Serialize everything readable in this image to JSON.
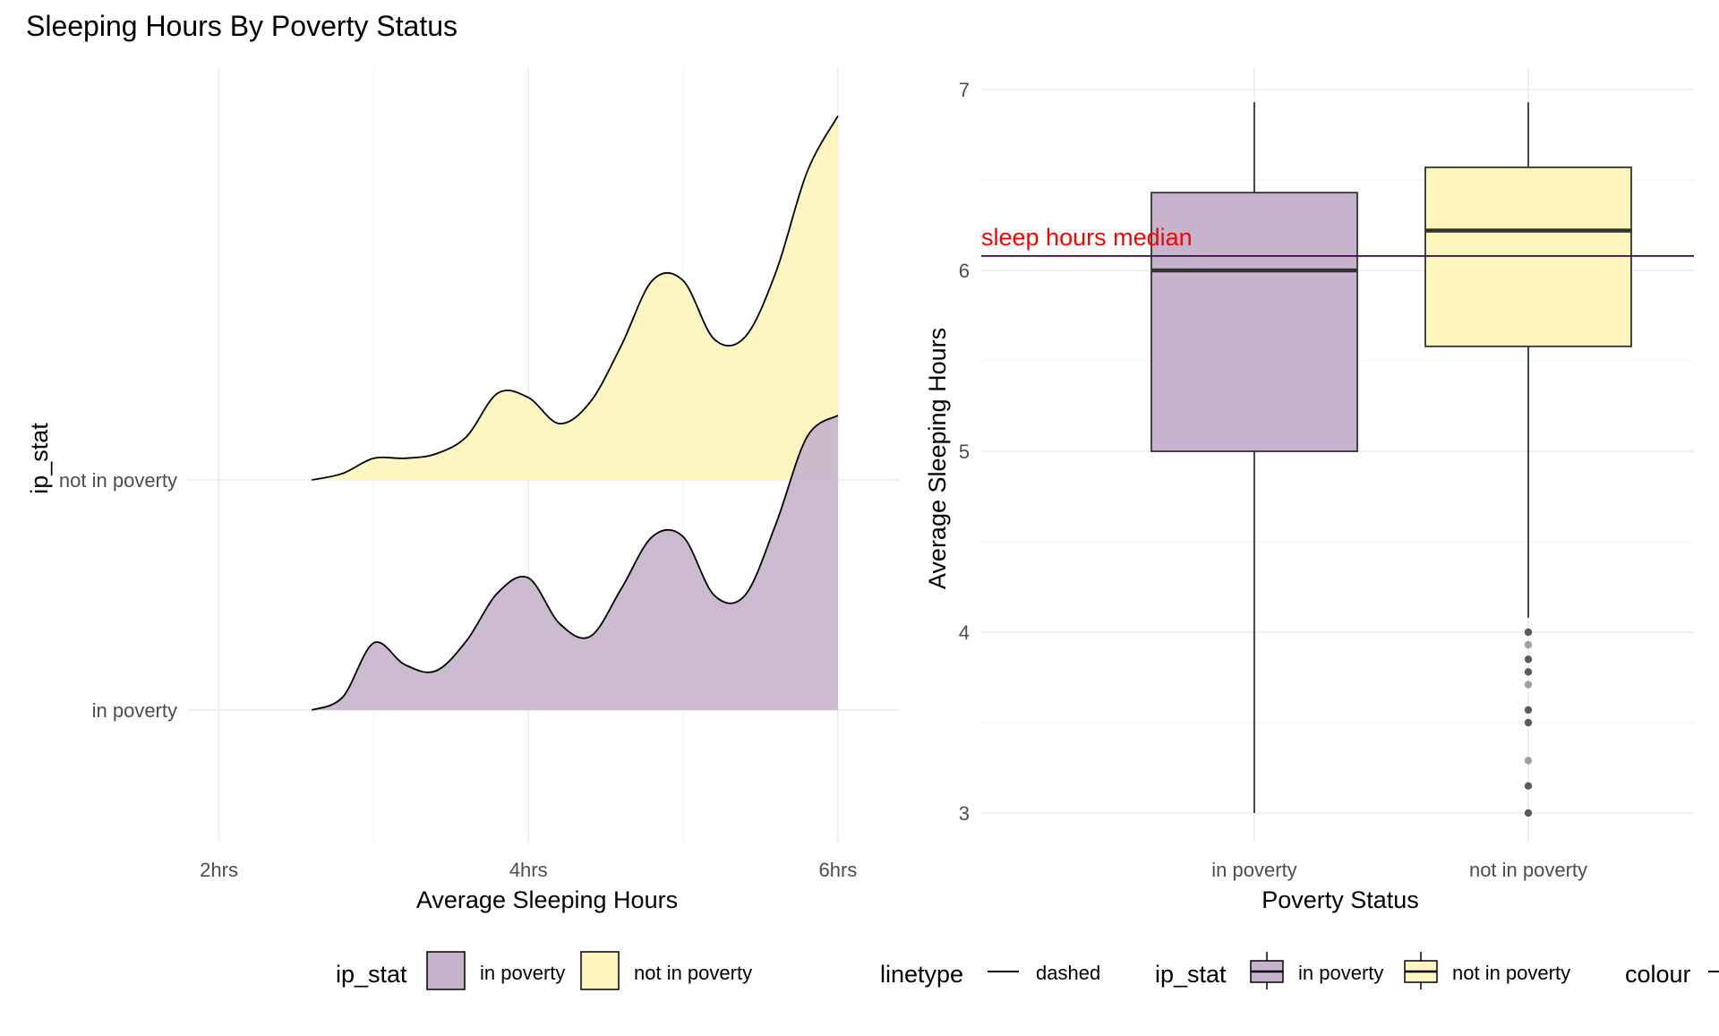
{
  "title": "Sleeping Hours By Poverty Status",
  "colors": {
    "in_poverty": "#c7b4cc",
    "not_in_poverty": "#fdf5bd",
    "median_line": "#440154",
    "annotation": "#ff0000",
    "outline": "#000000",
    "grid": "#ebebeb"
  },
  "chart_data": [
    {
      "type": "ridgeline",
      "xlabel": "Average Sleeping Hours",
      "ylabel": "ip_stat",
      "xlim": [
        1.8,
        6.4
      ],
      "x_ticks": [
        {
          "value": 2,
          "label": "2hrs"
        },
        {
          "value": 4,
          "label": "4hrs"
        },
        {
          "value": 6,
          "label": "6hrs"
        }
      ],
      "categories": [
        "in poverty",
        "not in poverty"
      ],
      "grid": true,
      "series": [
        {
          "name": "in poverty",
          "x": [
            2.6,
            2.8,
            3.0,
            3.2,
            3.4,
            3.6,
            3.8,
            4.0,
            4.2,
            4.4,
            4.6,
            4.8,
            5.0,
            5.2,
            5.4,
            5.6,
            5.8,
            6.0
          ],
          "density": [
            0.0,
            0.06,
            0.31,
            0.21,
            0.18,
            0.32,
            0.54,
            0.61,
            0.4,
            0.34,
            0.56,
            0.8,
            0.8,
            0.53,
            0.53,
            0.86,
            1.26,
            1.36
          ]
        },
        {
          "name": "not in poverty",
          "x": [
            2.6,
            2.8,
            3.0,
            3.2,
            3.4,
            3.6,
            3.8,
            4.0,
            4.2,
            4.4,
            4.6,
            4.8,
            5.0,
            5.2,
            5.4,
            5.6,
            5.8,
            6.0
          ],
          "density": [
            0.0,
            0.03,
            0.1,
            0.1,
            0.12,
            0.2,
            0.4,
            0.38,
            0.26,
            0.36,
            0.62,
            0.92,
            0.92,
            0.65,
            0.66,
            0.96,
            1.42,
            1.68
          ]
        }
      ],
      "legend": {
        "title": "ip_stat",
        "position": "bottom",
        "entries": [
          "in poverty",
          "not in poverty"
        ]
      }
    },
    {
      "type": "boxplot",
      "xlabel": "Poverty Status",
      "ylabel": "Average Sleeping Hours",
      "ylim": [
        2.75,
        7.2
      ],
      "y_ticks": [
        3,
        4,
        5,
        6,
        7
      ],
      "categories": [
        "in poverty",
        "not in poverty"
      ],
      "grid": true,
      "boxes": [
        {
          "name": "in poverty",
          "min": 3.0,
          "q1": 5.0,
          "median": 6.0,
          "q3": 6.43,
          "max": 6.93,
          "outliers": []
        },
        {
          "name": "not in poverty",
          "min": 4.08,
          "q1": 5.58,
          "median": 6.22,
          "q3": 6.57,
          "max": 6.93,
          "outliers": [
            4.0,
            3.93,
            3.85,
            3.78,
            3.71,
            3.57,
            3.5,
            3.29,
            3.15,
            3.0
          ]
        }
      ],
      "hline": {
        "value": 6.08,
        "linetype": "solid",
        "label": "sleep hours median"
      },
      "legend": {
        "position": "bottom",
        "linetype_title": "linetype",
        "linetype_entry": "dashed",
        "fill_title": "ip_stat",
        "fill_entries": [
          "in poverty",
          "not in poverty"
        ],
        "colour_title": "colour"
      }
    }
  ]
}
